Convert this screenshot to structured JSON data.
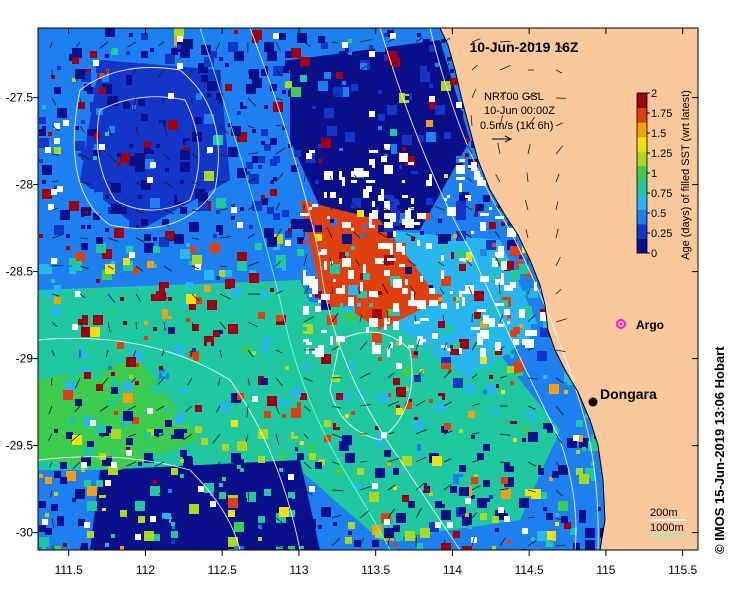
{
  "title": "10-Jun-2019 16Z",
  "product": {
    "line1": "NRT00 GSL",
    "line2": "10-Jun 00:00Z",
    "line3": "0.5m/s (1kt 6h)"
  },
  "colorbar": {
    "label": "Age (days) of filled SST (wrt latest)",
    "ticks": [
      "2",
      "1.75",
      "1.5",
      "1.25",
      "1",
      "0.75",
      "0.5",
      "0.25",
      "0"
    ],
    "min": 0,
    "max": 2,
    "colors": [
      "#0a0f8c",
      "#1436c8",
      "#1e7ff0",
      "#27b6f0",
      "#20c8a0",
      "#3ccc50",
      "#a8d820",
      "#f0e010",
      "#f0a010",
      "#e04010",
      "#a00010"
    ]
  },
  "axes": {
    "x_ticks": [
      "111.5",
      "112",
      "112.5",
      "113",
      "113.5",
      "114",
      "114.5",
      "115",
      "115.5"
    ],
    "y_ticks": [
      "-27.5",
      "-28",
      "-28.5",
      "-29",
      "-29.5",
      "-30"
    ],
    "lon_range": [
      111.3,
      115.6
    ],
    "lat_range": [
      -27.1,
      -30.1
    ]
  },
  "places": [
    {
      "name": "Dongara",
      "lon": 114.93,
      "lat": -29.25
    },
    {
      "name": "Argo",
      "lon": 115.12,
      "lat": -28.8
    }
  ],
  "bathymetry_legend": {
    "label_200": "200m",
    "label_1000": "1000m"
  },
  "credit": "© IMOS 15-Jun-2019 13:06 Hobart",
  "colors": {
    "land": "#f9c99b",
    "contour_200": "#ffffff",
    "contour_1000": "#7fffd4",
    "argo_marker": "#e020e0"
  }
}
